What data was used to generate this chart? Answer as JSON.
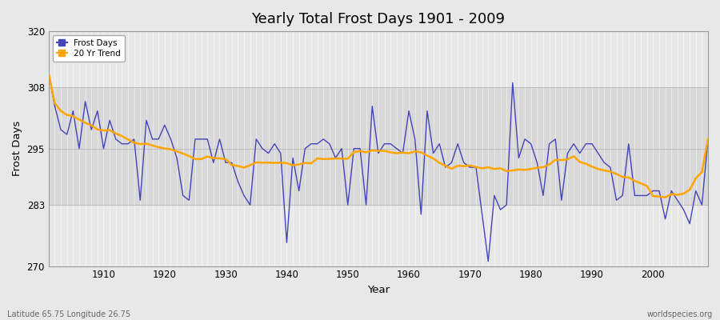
{
  "title": "Yearly Total Frost Days 1901 - 2009",
  "xlabel": "Year",
  "ylabel": "Frost Days",
  "subtitle_lat": "Latitude 65.75 Longitude 26.75",
  "watermark": "worldspecies.org",
  "ylim": [
    270,
    320
  ],
  "yticks": [
    270,
    283,
    295,
    308,
    320
  ],
  "line_color": "#4444bb",
  "trend_color": "#FFA500",
  "bg_color": "#e8e8e8",
  "plot_bg_color": "#d8d8d8",
  "band1_color": "#e0e0e0",
  "band2_color": "#d0d0d0",
  "years": [
    1901,
    1902,
    1903,
    1904,
    1905,
    1906,
    1907,
    1908,
    1909,
    1910,
    1911,
    1912,
    1913,
    1914,
    1915,
    1916,
    1917,
    1918,
    1919,
    1920,
    1921,
    1922,
    1923,
    1924,
    1925,
    1926,
    1927,
    1928,
    1929,
    1930,
    1931,
    1932,
    1933,
    1934,
    1935,
    1936,
    1937,
    1938,
    1939,
    1940,
    1941,
    1942,
    1943,
    1944,
    1945,
    1946,
    1947,
    1948,
    1949,
    1950,
    1951,
    1952,
    1953,
    1954,
    1955,
    1956,
    1957,
    1958,
    1959,
    1960,
    1961,
    1962,
    1963,
    1964,
    1965,
    1966,
    1967,
    1968,
    1969,
    1970,
    1971,
    1972,
    1973,
    1974,
    1975,
    1976,
    1977,
    1978,
    1979,
    1980,
    1981,
    1982,
    1983,
    1984,
    1985,
    1986,
    1987,
    1988,
    1989,
    1990,
    1991,
    1992,
    1993,
    1994,
    1995,
    1996,
    1997,
    1998,
    1999,
    2000,
    2001,
    2002,
    2003,
    2004,
    2005,
    2006,
    2007,
    2008,
    2009
  ],
  "frost_days": [
    311,
    304,
    299,
    298,
    303,
    295,
    305,
    299,
    303,
    295,
    301,
    297,
    296,
    296,
    297,
    284,
    301,
    297,
    297,
    300,
    297,
    293,
    285,
    284,
    297,
    297,
    297,
    292,
    297,
    292,
    292,
    288,
    285,
    283,
    297,
    295,
    294,
    296,
    294,
    275,
    293,
    286,
    295,
    296,
    296,
    297,
    296,
    293,
    295,
    283,
    295,
    295,
    283,
    304,
    294,
    296,
    296,
    295,
    294,
    303,
    297,
    281,
    303,
    294,
    296,
    291,
    292,
    296,
    292,
    291,
    291,
    281,
    271,
    285,
    282,
    283,
    309,
    293,
    297,
    296,
    292,
    285,
    296,
    297,
    284,
    294,
    296,
    294,
    296,
    296,
    294,
    292,
    291,
    284,
    285,
    296,
    285,
    285,
    285,
    286,
    286,
    280,
    286,
    284,
    282,
    279,
    286,
    283,
    297
  ]
}
